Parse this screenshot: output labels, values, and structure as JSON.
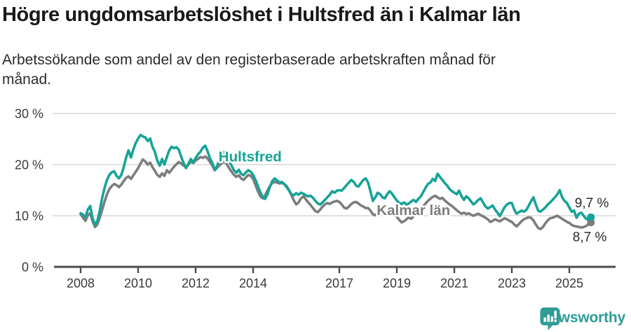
{
  "header": {
    "title": "Högre ungdomsarbetslöshet i Hultsfred än i Kalmar län",
    "subtitle_line1": "Arbetssökande som andel av den registerbaserade arbetskraften månad för",
    "subtitle_line2": "månad."
  },
  "chart_data": {
    "type": "line",
    "x_start_year": 2008,
    "x_step_months": 1,
    "x_end": "2025-10",
    "ylim": [
      0,
      30
    ],
    "yticks": [
      0,
      10,
      20,
      30
    ],
    "ytick_labels": [
      "0 %",
      "10 %",
      "20 %",
      "30 %"
    ],
    "xticks": [
      2008,
      2010,
      2012,
      2014,
      2017,
      2019,
      2021,
      2023,
      2025
    ],
    "grid": true,
    "legend_position": "inline-labels",
    "colors": {
      "grid": "#d9d9d9",
      "axis": "#4c4c4c",
      "axis_text": "#3a3a3a",
      "value_label": "#2b2b2b"
    },
    "series": [
      {
        "name": "Kalmar län",
        "color": "#7d7d7d",
        "end_label": "8,7 %",
        "label_anchor": {
          "year": 2018.3,
          "value": 10.15
        },
        "values": [
          10.3,
          9.6,
          9.0,
          10.1,
          10.5,
          8.9,
          7.8,
          8.3,
          9.6,
          11.2,
          12.8,
          14.2,
          15.2,
          15.8,
          16.2,
          16.0,
          15.6,
          16.1,
          16.8,
          17.4,
          17.7,
          17.2,
          17.9,
          18.6,
          19.3,
          20.2,
          21.0,
          20.6,
          20.0,
          20.4,
          19.5,
          18.8,
          18.0,
          17.6,
          18.3,
          17.8,
          18.9,
          18.4,
          19.0,
          19.6,
          20.1,
          20.5,
          20.2,
          19.8,
          19.5,
          20.0,
          20.6,
          20.3,
          20.8,
          21.1,
          21.5,
          21.3,
          21.6,
          21.2,
          20.5,
          19.8,
          18.9,
          19.4,
          19.9,
          20.3,
          20.6,
          20.1,
          19.3,
          18.6,
          18.0,
          17.6,
          17.9,
          17.3,
          17.0,
          17.5,
          18.0,
          17.8,
          17.2,
          16.0,
          14.8,
          13.8,
          13.4,
          14.0,
          14.9,
          15.8,
          16.4,
          16.6,
          16.5,
          16.3,
          16.4,
          16.2,
          15.8,
          15.0,
          14.0,
          13.0,
          12.2,
          12.6,
          13.4,
          13.8,
          13.2,
          12.6,
          12.1,
          11.5,
          10.9,
          10.7,
          11.2,
          11.8,
          12.2,
          12.5,
          12.3,
          12.6,
          12.8,
          12.9,
          12.7,
          12.2,
          11.6,
          11.4,
          11.8,
          12.3,
          12.6,
          12.7,
          12.4,
          12.0,
          11.8,
          11.5,
          11.5,
          11.0,
          10.3,
          10.1,
          10.6,
          11.0,
          10.7,
          10.4,
          10.7,
          11.0,
          10.6,
          10.2,
          9.8,
          9.2,
          8.7,
          8.9,
          9.3,
          9.7,
          9.4,
          9.9,
          10.3,
          10.7,
          11.2,
          11.8,
          12.4,
          12.9,
          13.3,
          13.7,
          13.9,
          13.6,
          13.3,
          13.5,
          13.0,
          12.6,
          12.2,
          11.9,
          11.5,
          11.1,
          10.7,
          10.4,
          10.6,
          10.3,
          10.5,
          10.2,
          10.0,
          10.2,
          10.4,
          10.1,
          9.9,
          9.6,
          9.3,
          8.8,
          9.0,
          9.3,
          9.1,
          8.9,
          9.2,
          9.5,
          9.3,
          9.0,
          8.8,
          8.3,
          7.9,
          8.4,
          8.9,
          9.3,
          9.5,
          9.7,
          9.6,
          9.1,
          8.3,
          7.6,
          7.4,
          7.8,
          8.5,
          9.1,
          9.5,
          9.6,
          9.8,
          10.0,
          9.7,
          9.4,
          9.1,
          8.8,
          8.6,
          8.2,
          8.0,
          7.9,
          7.8,
          7.7,
          7.8,
          8.0,
          8.3,
          8.7
        ]
      },
      {
        "name": "Hultsfred",
        "color": "#17a398",
        "end_label": "9,7 %",
        "label_anchor": {
          "year": 2012.8,
          "value": 20.6
        },
        "values": [
          10.5,
          10.2,
          9.7,
          11.2,
          11.9,
          9.5,
          8.2,
          9.0,
          11.0,
          13.5,
          15.5,
          17.0,
          18.0,
          18.5,
          18.7,
          17.8,
          17.3,
          18.0,
          19.5,
          21.4,
          22.8,
          21.4,
          23.0,
          24.2,
          25.1,
          25.8,
          25.5,
          25.3,
          24.6,
          25.1,
          23.5,
          22.5,
          20.8,
          19.8,
          21.1,
          20.0,
          21.5,
          22.8,
          23.5,
          23.2,
          23.4,
          22.9,
          21.5,
          20.3,
          19.3,
          20.2,
          21.1,
          20.4,
          21.3,
          22.0,
          22.5,
          23.3,
          23.7,
          22.6,
          21.2,
          20.3,
          18.9,
          19.8,
          21.0,
          21.8,
          22.5,
          21.9,
          20.6,
          19.8,
          18.9,
          18.4,
          19.0,
          18.2,
          17.9,
          18.5,
          18.9,
          18.6,
          18.0,
          17.0,
          15.8,
          14.6,
          13.6,
          13.3,
          14.2,
          15.6,
          16.8,
          17.3,
          16.9,
          16.5,
          16.6,
          16.2,
          15.6,
          14.9,
          14.2,
          14.0,
          14.4,
          14.1,
          14.5,
          14.3,
          14.0,
          13.8,
          13.9,
          13.5,
          12.9,
          12.4,
          12.2,
          12.6,
          13.1,
          13.6,
          14.1,
          14.8,
          14.5,
          14.9,
          15.0,
          14.9,
          15.4,
          16.0,
          16.5,
          17.0,
          16.6,
          15.9,
          15.7,
          16.4,
          17.0,
          17.3,
          16.5,
          14.8,
          12.9,
          13.6,
          14.5,
          14.2,
          13.6,
          13.4,
          14.2,
          14.8,
          14.3,
          13.6,
          13.0,
          12.5,
          12.3,
          12.6,
          12.2,
          12.4,
          12.8,
          13.1,
          12.7,
          13.3,
          13.8,
          14.6,
          15.5,
          16.2,
          16.5,
          17.2,
          16.8,
          18.2,
          17.6,
          17.0,
          16.4,
          15.9,
          15.2,
          14.8,
          14.5,
          14.2,
          14.9,
          13.8,
          13.1,
          13.8,
          13.4,
          12.8,
          12.2,
          12.6,
          13.1,
          13.4,
          12.6,
          11.8,
          11.4,
          11.7,
          12.0,
          11.2,
          10.6,
          9.9,
          10.8,
          11.7,
          12.2,
          12.5,
          12.5,
          11.2,
          10.4,
          10.7,
          11.0,
          10.8,
          11.1,
          11.9,
          12.8,
          13.6,
          12.2,
          11.0,
          10.8,
          11.2,
          11.6,
          12.2,
          12.6,
          13.1,
          13.6,
          14.2,
          15.0,
          13.6,
          12.9,
          12.5,
          11.6,
          10.8,
          11.0,
          9.6,
          10.4,
          10.6,
          10.0,
          9.4,
          9.2,
          9.7
        ]
      }
    ]
  },
  "footer": {
    "brand": "Newsworthy",
    "brand_color": "#2f9c96",
    "icon": "bar-chart-speech-bubble-icon"
  }
}
